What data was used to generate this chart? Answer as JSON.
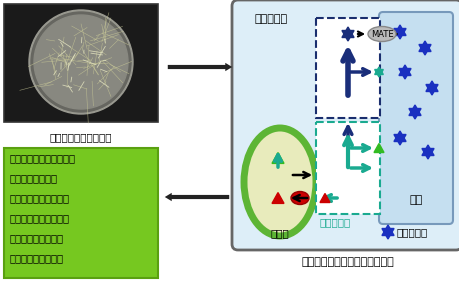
{
  "cell_bg": "#ddeef8",
  "vacuole_bg": "#c5dff0",
  "chloroplast_outer": "#5db535",
  "chloroplast_inner": "#e8ebbc",
  "green_box_bg": "#76c820",
  "green_box_edge": "#5aa010",
  "dashed_box1_color": "#1a2e6e",
  "dashed_box2_color": "#1aaa90",
  "label_nijicode": "二次代謝系",
  "label_ichicode": "一次代謝系",
  "label_shikisotai": "色素体",
  "label_ekiho": "液胞",
  "label_nicotine": "：ニコチン",
  "label_mate": "MATE",
  "caption1": "タバコ形質転換毛状根",
  "caption2": "細胞内での生合成と輸送の解析",
  "green_text_line1": "タバコにおけるニコチン",
  "green_text_line2": "生産をモデルに、",
  "green_text_line3": "細胞内での代謝産物の",
  "green_text_line4": "空間的動態の解析と、",
  "green_text_line5": "より効率的な生産の",
  "green_text_line6": "基盤構築を目指す。",
  "dark_blue": "#1a2e7a",
  "teal": "#1aaa90",
  "blue_star": "#1a30c0",
  "photo_bg": "#1a1a1a",
  "photo_circle_bg": "#888880",
  "photo_circle_rim": "#aaaaaa",
  "cell_border": "#666666",
  "vacuole_border": "#7799bb",
  "arrow_big_color": "#222222",
  "red_color": "#cc0000",
  "mate_bg": "#bbbbbb",
  "mate_border": "#888888"
}
